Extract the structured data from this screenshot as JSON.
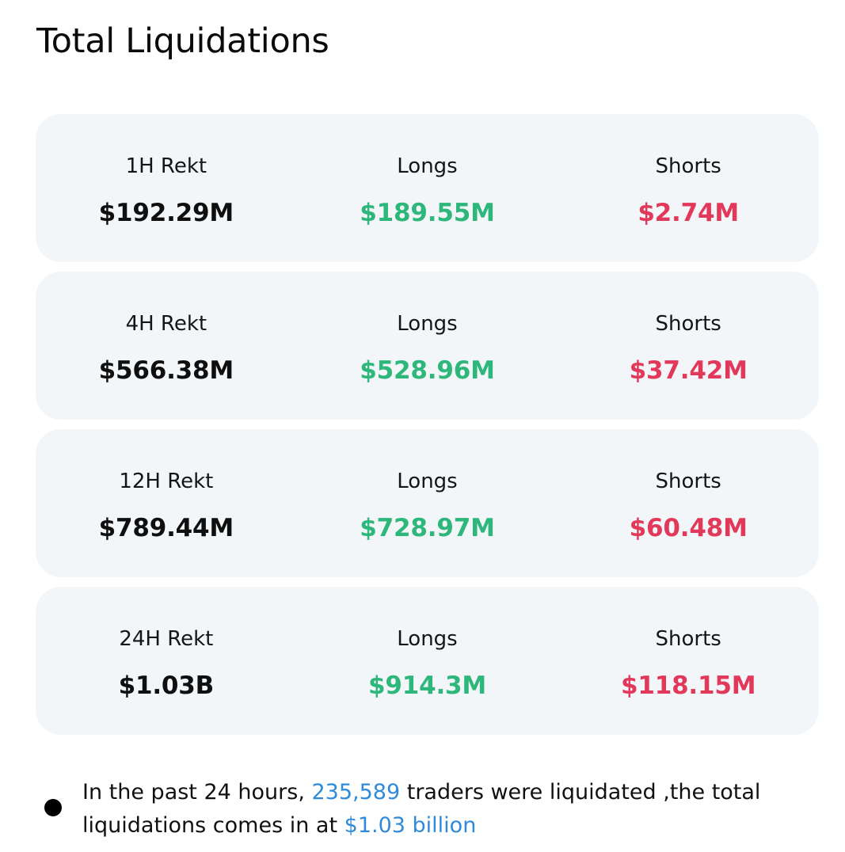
{
  "title": "Total Liquidations",
  "cards": [
    {
      "period_label": "1H Rekt",
      "total": "$192.29M",
      "longs_label": "Longs",
      "longs": "$189.55M",
      "shorts_label": "Shorts",
      "shorts": "$2.74M"
    },
    {
      "period_label": "4H Rekt",
      "total": "$566.38M",
      "longs_label": "Longs",
      "longs": "$528.96M",
      "shorts_label": "Shorts",
      "shorts": "$37.42M"
    },
    {
      "period_label": "12H Rekt",
      "total": "$789.44M",
      "longs_label": "Longs",
      "longs": "$728.97M",
      "shorts_label": "Shorts",
      "shorts": "$60.48M"
    },
    {
      "period_label": "24H Rekt",
      "total": "$1.03B",
      "longs_label": "Longs",
      "longs": "$914.3M",
      "shorts_label": "Shorts",
      "shorts": "$118.15M"
    }
  ],
  "summary": {
    "part1": "In the past 24 hours, ",
    "traders_count": "235,589",
    "part2": " traders were liquidated ,the total liquidations comes in at ",
    "total_amount": "$1.03 billion"
  },
  "colors": {
    "longs": "#2db77a",
    "shorts": "#e2385a",
    "highlight": "#2f8bd9",
    "card_background": "#f3f6f9"
  }
}
